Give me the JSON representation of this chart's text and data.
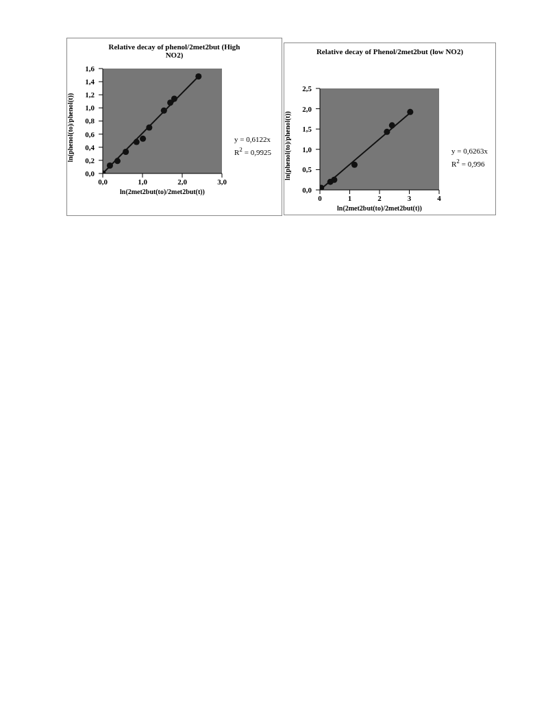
{
  "chart_data": [
    {
      "type": "scatter",
      "title": "Relative decay of phenol/2met2but (High NO2)",
      "xlabel": "ln(2met2but(to)/2met2but(t))",
      "ylabel": "ln(phenol(to)/phenol(t))",
      "xlim": [
        0,
        3
      ],
      "xticks": [
        {
          "value": 0,
          "label": "0,0"
        },
        {
          "value": 1,
          "label": "1,0"
        },
        {
          "value": 2,
          "label": "2,0"
        },
        {
          "value": 3,
          "label": "3,0"
        }
      ],
      "ylim": [
        0,
        1.6
      ],
      "yticks": [
        {
          "value": 0,
          "label": "0,0"
        },
        {
          "value": 0.2,
          "label": "0,2"
        },
        {
          "value": 0.4,
          "label": "0,4"
        },
        {
          "value": 0.6,
          "label": "0,6"
        },
        {
          "value": 0.8,
          "label": "0,8"
        },
        {
          "value": 1,
          "label": "1,0"
        },
        {
          "value": 1.2,
          "label": "1,2"
        },
        {
          "value": 1.4,
          "label": "1,4"
        },
        {
          "value": 1.6,
          "label": "1,6"
        }
      ],
      "marker": "circle",
      "grid": false,
      "series": [
        {
          "color": "#111111",
          "x": [
            0,
            0.18,
            0.37,
            0.58,
            0.85,
            1.01,
            1.17,
            1.54,
            1.7,
            1.8,
            2.41
          ],
          "values": [
            0,
            0.12,
            0.19,
            0.33,
            0.48,
            0.53,
            0.7,
            0.96,
            1.08,
            1.14,
            1.48
          ]
        },
        {
          "type": "line",
          "marker": "none",
          "color": "#111111",
          "x": [
            0,
            2.41
          ],
          "values": [
            0,
            1.48
          ]
        }
      ],
      "annotations": [
        "y = 0,6122x",
        "R$^{2}$ = 0,9925"
      ]
    },
    {
      "type": "scatter",
      "title": "Relative decay of Phenol/2met2but (low NO2)",
      "xlabel": "ln(2met2but(to)/2met2but(t))",
      "ylabel": "ln(phenol(to)/phenol(t))",
      "xlim": [
        0,
        4
      ],
      "xticks": [
        0,
        1,
        2,
        3,
        4
      ],
      "ylim": [
        0,
        2.5
      ],
      "yticks": [
        {
          "value": 0,
          "label": "0,0"
        },
        {
          "value": 0.5,
          "label": "0,5"
        },
        {
          "value": 1,
          "label": "1,0"
        },
        {
          "value": 1.5,
          "label": "1,5"
        },
        {
          "value": 2,
          "label": "2,0"
        },
        {
          "value": 2.5,
          "label": "2,5"
        }
      ],
      "marker": "circle",
      "grid": false,
      "series": [
        {
          "color": "#111111",
          "x": [
            0.04,
            0.35,
            0.48,
            1.16,
            2.25,
            2.42,
            3.03
          ],
          "values": [
            0.05,
            0.2,
            0.25,
            0.62,
            1.43,
            1.59,
            1.92
          ]
        },
        {
          "type": "line",
          "marker": "none",
          "color": "#111111",
          "x": [
            0,
            3.03
          ],
          "values": [
            0,
            1.9
          ]
        }
      ],
      "annotations": [
        "y = 0,6263x",
        "R$^{2}$ = 0,996"
      ]
    }
  ]
}
